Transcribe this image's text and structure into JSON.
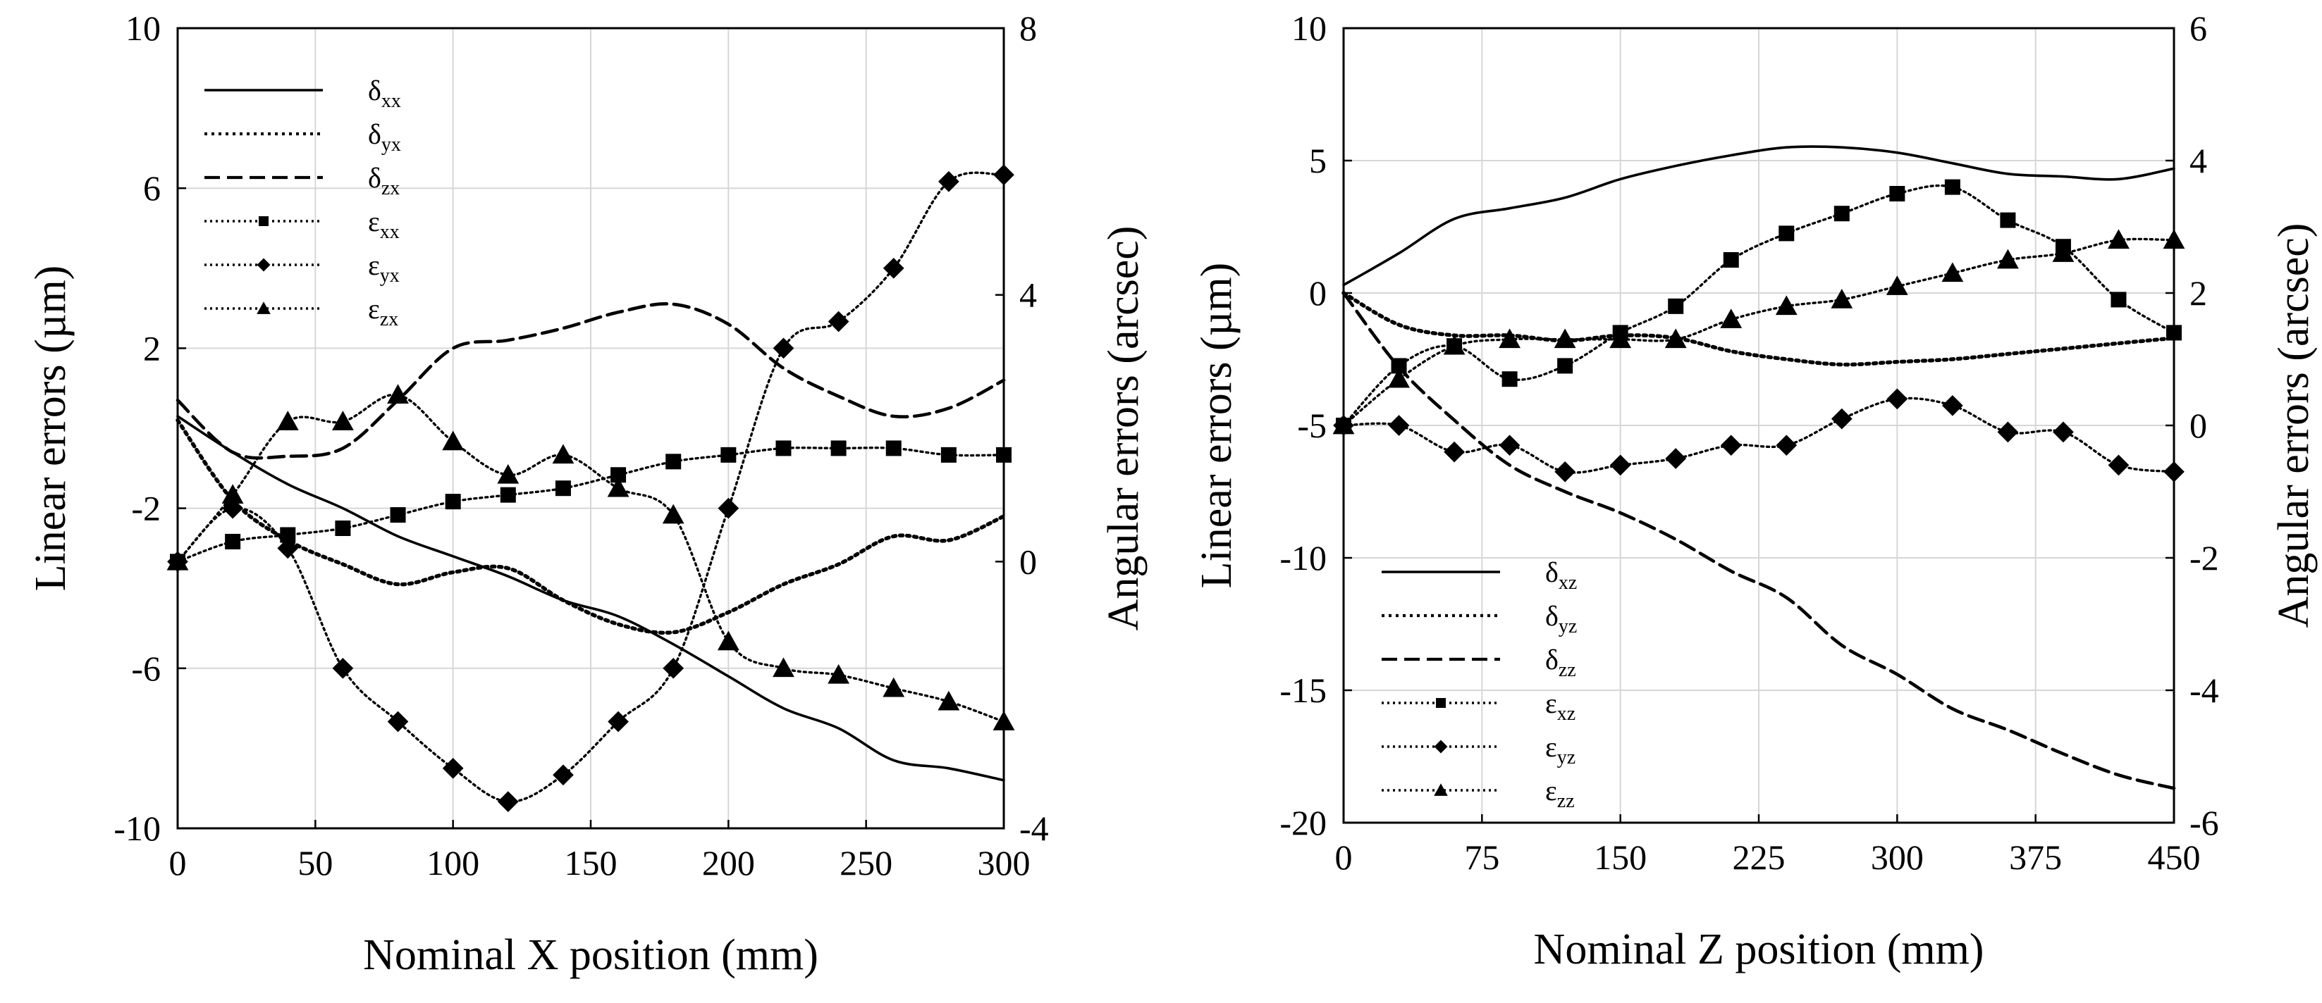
{
  "chart_data": [
    {
      "type": "line",
      "title": "",
      "xlabel": "Nominal X position (mm)",
      "ylabel": "Linear errors (µm)",
      "y2label": "Angular errors (arcsec)",
      "xlim": [
        0,
        300
      ],
      "ylim": [
        -10,
        10
      ],
      "y2lim": [
        -4,
        8
      ],
      "xticks": [
        0,
        50,
        100,
        150,
        200,
        250,
        300
      ],
      "yticks": [
        -10,
        -6,
        -2,
        2,
        6,
        10
      ],
      "y2ticks": [
        -4,
        0,
        4,
        8
      ],
      "grid": true,
      "legend_position": "top-left",
      "series": [
        {
          "name": "δxx",
          "sym": "δ",
          "sub": "xx",
          "axis": "left",
          "style": "solid",
          "marker": "none",
          "x": [
            0,
            20,
            40,
            60,
            80,
            100,
            120,
            140,
            160,
            180,
            200,
            220,
            240,
            260,
            280,
            300
          ],
          "values": [
            0.3,
            -0.6,
            -1.4,
            -2.0,
            -2.7,
            -3.2,
            -3.7,
            -4.3,
            -4.7,
            -5.4,
            -6.2,
            -7.0,
            -7.5,
            -8.3,
            -8.5,
            -8.8
          ]
        },
        {
          "name": "δyx",
          "sym": "δ",
          "sub": "yx",
          "axis": "left",
          "style": "dotted-heavy",
          "marker": "none",
          "x": [
            0,
            20,
            40,
            60,
            80,
            100,
            120,
            140,
            160,
            180,
            200,
            220,
            240,
            260,
            280,
            300
          ],
          "values": [
            0.2,
            -1.8,
            -2.8,
            -3.4,
            -3.9,
            -3.6,
            -3.5,
            -4.3,
            -4.9,
            -5.1,
            -4.6,
            -3.9,
            -3.4,
            -2.7,
            -2.8,
            -2.2
          ]
        },
        {
          "name": "δzx",
          "sym": "δ",
          "sub": "zx",
          "axis": "left",
          "style": "dashed",
          "marker": "none",
          "x": [
            0,
            20,
            40,
            60,
            80,
            100,
            120,
            140,
            160,
            180,
            200,
            220,
            240,
            260,
            280,
            300
          ],
          "values": [
            0.7,
            -0.6,
            -0.7,
            -0.5,
            0.7,
            2.0,
            2.2,
            2.5,
            2.9,
            3.1,
            2.6,
            1.5,
            0.8,
            0.3,
            0.5,
            1.2
          ]
        },
        {
          "name": "εxx",
          "sym": "ε",
          "sub": "xx",
          "axis": "right",
          "style": "dotted",
          "marker": "square",
          "x": [
            0,
            20,
            40,
            60,
            80,
            100,
            120,
            140,
            160,
            180,
            200,
            220,
            240,
            260,
            280,
            300
          ],
          "values": [
            0,
            0.3,
            0.4,
            0.5,
            0.7,
            0.9,
            1.0,
            1.1,
            1.3,
            1.5,
            1.6,
            1.7,
            1.7,
            1.7,
            1.6,
            1.6
          ]
        },
        {
          "name": "εyx",
          "sym": "ε",
          "sub": "yx",
          "axis": "right",
          "style": "dotted",
          "marker": "diamond",
          "x": [
            0,
            20,
            40,
            60,
            80,
            100,
            120,
            140,
            160,
            180,
            200,
            220,
            240,
            260,
            280,
            300
          ],
          "values": [
            0,
            0.8,
            0.2,
            -1.6,
            -2.4,
            -3.1,
            -3.6,
            -3.2,
            -2.4,
            -1.6,
            0.8,
            3.2,
            3.6,
            4.4,
            5.7,
            5.8
          ]
        },
        {
          "name": "εzx",
          "sym": "ε",
          "sub": "zx",
          "axis": "right",
          "style": "dotted",
          "marker": "triangle",
          "x": [
            0,
            20,
            40,
            60,
            80,
            100,
            120,
            140,
            160,
            180,
            200,
            220,
            240,
            260,
            280,
            300
          ],
          "values": [
            0,
            1.0,
            2.1,
            2.1,
            2.5,
            1.8,
            1.3,
            1.6,
            1.1,
            0.7,
            -1.2,
            -1.6,
            -1.7,
            -1.9,
            -2.1,
            -2.4
          ]
        }
      ]
    },
    {
      "type": "line",
      "title": "",
      "xlabel": "Nominal Z position (mm)",
      "ylabel": "Linear errors (µm)",
      "y2label": "Angular errors (arcsec)",
      "xlim": [
        0,
        450
      ],
      "ylim": [
        -20,
        10
      ],
      "y2lim": [
        -6,
        6
      ],
      "xticks": [
        0,
        75,
        150,
        225,
        300,
        375,
        450
      ],
      "yticks": [
        -20,
        -15,
        -10,
        -5,
        0,
        5,
        10
      ],
      "y2ticks": [
        -6,
        -4,
        -2,
        0,
        2,
        4,
        6
      ],
      "grid": true,
      "legend_position": "bottom-left",
      "series": [
        {
          "name": "δxz",
          "sym": "δ",
          "sub": "xz",
          "axis": "left",
          "style": "solid",
          "marker": "none",
          "x": [
            0,
            30,
            60,
            90,
            120,
            150,
            180,
            210,
            240,
            270,
            300,
            330,
            360,
            390,
            420,
            450
          ],
          "values": [
            0.3,
            1.5,
            2.8,
            3.2,
            3.6,
            4.3,
            4.8,
            5.2,
            5.5,
            5.5,
            5.3,
            4.9,
            4.5,
            4.4,
            4.3,
            4.7
          ]
        },
        {
          "name": "δyz",
          "sym": "δ",
          "sub": "yz",
          "axis": "left",
          "style": "dotted-heavy",
          "marker": "none",
          "x": [
            0,
            30,
            60,
            90,
            120,
            150,
            180,
            210,
            240,
            270,
            300,
            330,
            360,
            390,
            420,
            450
          ],
          "values": [
            0,
            -1.2,
            -1.6,
            -1.6,
            -1.8,
            -1.6,
            -1.7,
            -2.2,
            -2.5,
            -2.7,
            -2.6,
            -2.5,
            -2.3,
            -2.1,
            -1.9,
            -1.7
          ]
        },
        {
          "name": "δzz",
          "sym": "δ",
          "sub": "zz",
          "axis": "left",
          "style": "dashed",
          "marker": "none",
          "x": [
            0,
            30,
            60,
            90,
            120,
            150,
            180,
            210,
            240,
            270,
            300,
            330,
            360,
            390,
            420,
            450
          ],
          "values": [
            0,
            -2.8,
            -4.8,
            -6.5,
            -7.5,
            -8.3,
            -9.3,
            -10.5,
            -11.5,
            -13.3,
            -14.4,
            -15.7,
            -16.5,
            -17.4,
            -18.2,
            -18.7
          ]
        },
        {
          "name": "εxz",
          "sym": "ε",
          "sub": "xz",
          "axis": "right",
          "style": "dotted",
          "marker": "square",
          "x": [
            0,
            30,
            60,
            90,
            120,
            150,
            180,
            210,
            240,
            270,
            300,
            330,
            360,
            390,
            420,
            450
          ],
          "values": [
            0,
            0.9,
            1.2,
            0.7,
            0.9,
            1.4,
            1.8,
            2.5,
            2.9,
            3.2,
            3.5,
            3.6,
            3.1,
            2.7,
            1.9,
            1.4
          ]
        },
        {
          "name": "εyz",
          "sym": "ε",
          "sub": "yz",
          "axis": "right",
          "style": "dotted",
          "marker": "diamond",
          "x": [
            0,
            30,
            60,
            90,
            120,
            150,
            180,
            210,
            240,
            270,
            300,
            330,
            360,
            390,
            420,
            450
          ],
          "values": [
            0,
            0,
            -0.4,
            -0.3,
            -0.7,
            -0.6,
            -0.5,
            -0.3,
            -0.3,
            0.1,
            0.4,
            0.3,
            -0.1,
            -0.1,
            -0.6,
            -0.7
          ]
        },
        {
          "name": "εzz",
          "sym": "ε",
          "sub": "zz",
          "axis": "right",
          "style": "dotted",
          "marker": "triangle",
          "x": [
            0,
            30,
            60,
            90,
            120,
            150,
            180,
            210,
            240,
            270,
            300,
            330,
            360,
            390,
            420,
            450
          ],
          "values": [
            0,
            0.7,
            1.2,
            1.3,
            1.3,
            1.3,
            1.3,
            1.6,
            1.8,
            1.9,
            2.1,
            2.3,
            2.5,
            2.6,
            2.8,
            2.8
          ]
        }
      ]
    }
  ]
}
